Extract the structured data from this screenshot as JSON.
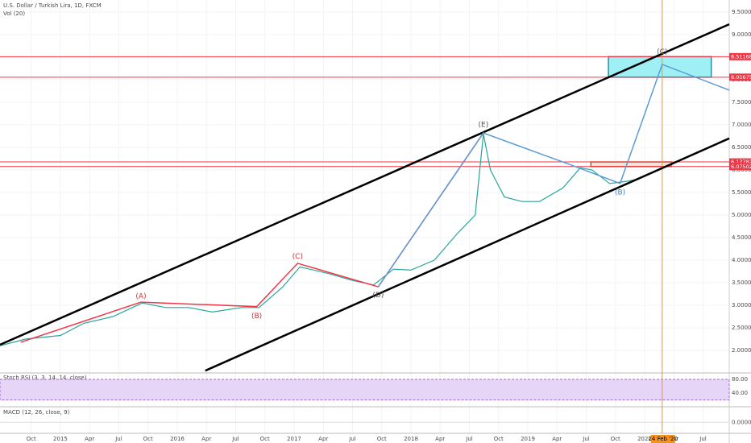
{
  "chart_data": {
    "type": "line",
    "title": "U.S. Dollar / Turkish Lira, 1D, FXCM",
    "indicators": [
      "Vol (20)",
      "Stoch RSI (3, 3, 14, 14, close)",
      "MACD (12, 26, close, 9)"
    ],
    "x": [
      2014.48,
      2014.7,
      2015.0,
      2015.2,
      2015.45,
      2015.7,
      2015.9,
      2016.1,
      2016.3,
      2016.55,
      2016.7,
      2016.9,
      2017.05,
      2017.3,
      2017.5,
      2017.68,
      2017.85,
      2018.0,
      2018.2,
      2018.4,
      2018.55,
      2018.62,
      2018.68,
      2018.8,
      2018.95,
      2019.1,
      2019.3,
      2019.45,
      2019.55,
      2019.7,
      2019.85,
      2019.95
    ],
    "values": [
      2.1,
      2.25,
      2.33,
      2.6,
      2.75,
      3.05,
      2.95,
      2.95,
      2.85,
      2.95,
      2.95,
      3.4,
      3.85,
      3.7,
      3.55,
      3.45,
      3.8,
      3.78,
      4.0,
      4.6,
      5.0,
      6.8,
      6.0,
      5.4,
      5.3,
      5.3,
      5.6,
      6.05,
      6.0,
      5.7,
      5.75,
      5.8
    ],
    "color": "#26a69a",
    "xlim": [
      2014.483,
      2020.724
    ],
    "xticks": [
      {
        "value": 2014.75,
        "label": "Oct"
      },
      {
        "value": 2015,
        "label": "2015"
      },
      {
        "value": 2015.25,
        "label": "Apr"
      },
      {
        "value": 2015.5,
        "label": "Jul"
      },
      {
        "value": 2015.75,
        "label": "Oct"
      },
      {
        "value": 2016,
        "label": "2016"
      },
      {
        "value": 2016.25,
        "label": "Apr"
      },
      {
        "value": 2016.5,
        "label": "Jul"
      },
      {
        "value": 2016.75,
        "label": "Oct"
      },
      {
        "value": 2017,
        "label": "2017"
      },
      {
        "value": 2017.25,
        "label": "Apr"
      },
      {
        "value": 2017.5,
        "label": "Jul"
      },
      {
        "value": 2017.75,
        "label": "Oct"
      },
      {
        "value": 2018,
        "label": "2018"
      },
      {
        "value": 2018.25,
        "label": "Apr"
      },
      {
        "value": 2018.5,
        "label": "Jul"
      },
      {
        "value": 2018.75,
        "label": "Oct"
      },
      {
        "value": 2019,
        "label": "2019"
      },
      {
        "value": 2019.25,
        "label": "Apr"
      },
      {
        "value": 2019.5,
        "label": "Jul"
      },
      {
        "value": 2019.75,
        "label": "Oct"
      },
      {
        "value": 2020,
        "label": "2020"
      },
      {
        "value": 2020.25,
        "label": "Apr"
      },
      {
        "value": 2020.5,
        "label": "Jul"
      }
    ],
    "ylim": [
      1.5,
      9.768
    ],
    "yticks": [
      {
        "value": 2,
        "label": "2.00000"
      },
      {
        "value": 2.5,
        "label": "2.50000"
      },
      {
        "value": 3,
        "label": "3.00000"
      },
      {
        "value": 3.5,
        "label": "3.50000"
      },
      {
        "value": 4,
        "label": "4.00000"
      },
      {
        "value": 4.5,
        "label": "4.50000"
      },
      {
        "value": 5,
        "label": "5.00000"
      },
      {
        "value": 5.5,
        "label": "5.50000"
      },
      {
        "value": 6,
        "label": "6.00000"
      },
      {
        "value": 6.5,
        "label": "6.50000"
      },
      {
        "value": 7,
        "label": "7.00000"
      },
      {
        "value": 7.5,
        "label": "7.50000"
      },
      {
        "value": 8,
        "label": "8.00000"
      },
      {
        "value": 8.5,
        "label": "8.50000"
      },
      {
        "value": 9,
        "label": "9.00000"
      },
      {
        "value": 9.5,
        "label": "9.50000"
      }
    ],
    "grid": true,
    "drawings": [
      {
        "color": "#000000",
        "width": 2.5,
        "x": [
          2014.483,
          2020.724
        ],
        "values": [
          2.125,
          9.23
        ]
      },
      {
        "color": "#000000",
        "width": 2.5,
        "x": [
          2016.24,
          2020.724
        ],
        "values": [
          1.55,
          6.7
        ]
      },
      {
        "color": "#f23645",
        "width": 1.5,
        "x": [
          2014.66,
          2015.69,
          2016.68,
          2017.03,
          2017.72,
          2018.62
        ],
        "values": [
          2.18,
          3.07,
          2.97,
          3.93,
          3.41,
          6.82
        ]
      },
      {
        "color": "#5b9bd5",
        "width": 1.5,
        "x": [
          2017.72,
          2018.62,
          2019.37,
          2019.79,
          2020.15,
          2020.724
        ],
        "values": [
          3.41,
          6.82,
          6.11,
          5.7,
          8.34,
          7.77
        ]
      }
    ],
    "levels": [
      {
        "value": 8.51168,
        "color": "#f23645"
      },
      {
        "value": 8.05675,
        "color": "#f23645"
      },
      {
        "value": 6.17782,
        "color": "#f23645"
      },
      {
        "value": 6.07502,
        "color": "#f23645"
      }
    ],
    "boxes": [
      {
        "x": [
          2019.69,
          2020.57
        ],
        "values": [
          8.05675,
          8.51168
        ],
        "fill": "#9ff0f5",
        "stroke": "#2a8ca0"
      },
      {
        "x": [
          2019.54,
          2020.23
        ],
        "values": [
          6.07502,
          6.17782
        ],
        "fill": "#f7e3d5",
        "stroke": "#b05a2b"
      }
    ],
    "marker": {
      "x": 2020.15,
      "label": "24 Feb '20",
      "color": "#f7931a"
    },
    "wave_labels": [
      {
        "text": "(A)",
        "x": 2015.69,
        "y": 3.2,
        "color": "#d32f2f"
      },
      {
        "text": "(B)",
        "x": 2016.68,
        "y": 2.76,
        "color": "#d32f2f"
      },
      {
        "text": "(C)",
        "x": 2017.03,
        "y": 4.08,
        "color": "#d32f2f"
      },
      {
        "text": "(D)",
        "x": 2017.72,
        "y": 3.22,
        "color": "#555555"
      },
      {
        "text": "(E)",
        "x": 2018.62,
        "y": 7.0,
        "color": "#555555"
      },
      {
        "text": "(B)",
        "x": 2019.79,
        "y": 5.5,
        "color": "#3d7fc1"
      },
      {
        "text": "(C)",
        "x": 2020.15,
        "y": 8.62,
        "color": "#555555"
      }
    ],
    "stoch": {
      "ylim": [
        0,
        98.8
      ],
      "yticks": [
        {
          "value": 80,
          "label": "80.00"
        },
        {
          "value": 40,
          "label": "40.00"
        }
      ],
      "band": [
        20,
        80
      ]
    },
    "macd": {
      "ylim": [
        -0.25,
        0.35
      ],
      "yticks": [
        {
          "value": 0,
          "label": "0.00000"
        }
      ]
    }
  }
}
